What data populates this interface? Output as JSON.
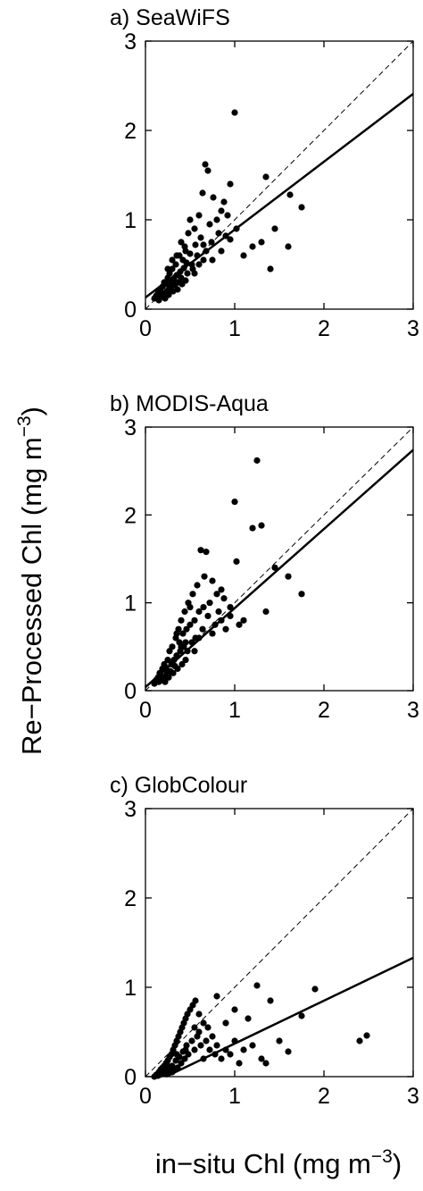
{
  "chart_data": [
    {
      "type": "scatter",
      "title": "a) SeaWiFS",
      "xlim": [
        0,
        3
      ],
      "ylim": [
        0,
        3
      ],
      "x_ticks": [
        "0",
        "1",
        "2",
        "3"
      ],
      "y_ticks": [
        "0",
        "1",
        "2",
        "3"
      ],
      "one_to_one_line": true,
      "fit_line": {
        "intercept": 0.13,
        "slope": 0.76
      },
      "points": [
        [
          0.1,
          0.12
        ],
        [
          0.12,
          0.15
        ],
        [
          0.14,
          0.18
        ],
        [
          0.15,
          0.1
        ],
        [
          0.16,
          0.22
        ],
        [
          0.17,
          0.2
        ],
        [
          0.18,
          0.14
        ],
        [
          0.19,
          0.25
        ],
        [
          0.2,
          0.17
        ],
        [
          0.21,
          0.3
        ],
        [
          0.22,
          0.12
        ],
        [
          0.23,
          0.28
        ],
        [
          0.24,
          0.2
        ],
        [
          0.25,
          0.35
        ],
        [
          0.26,
          0.16
        ],
        [
          0.27,
          0.4
        ],
        [
          0.28,
          0.24
        ],
        [
          0.29,
          0.3
        ],
        [
          0.3,
          0.45
        ],
        [
          0.31,
          0.2
        ],
        [
          0.32,
          0.33
        ],
        [
          0.33,
          0.27
        ],
        [
          0.34,
          0.5
        ],
        [
          0.35,
          0.38
        ],
        [
          0.36,
          0.22
        ],
        [
          0.37,
          0.3
        ],
        [
          0.38,
          0.6
        ],
        [
          0.39,
          0.42
        ],
        [
          0.4,
          0.35
        ],
        [
          0.41,
          0.28
        ],
        [
          0.42,
          0.55
        ],
        [
          0.43,
          0.46
        ],
        [
          0.44,
          0.7
        ],
        [
          0.45,
          0.32
        ],
        [
          0.46,
          0.52
        ],
        [
          0.47,
          0.4
        ],
        [
          0.48,
          0.85
        ],
        [
          0.5,
          0.62
        ],
        [
          0.52,
          0.5
        ],
        [
          0.53,
          0.45
        ],
        [
          0.55,
          0.9
        ],
        [
          0.56,
          0.72
        ],
        [
          0.58,
          0.6
        ],
        [
          0.6,
          1.05
        ],
        [
          0.62,
          0.8
        ],
        [
          0.64,
          1.3
        ],
        [
          0.65,
          0.55
        ],
        [
          0.67,
          1.62
        ],
        [
          0.68,
          0.65
        ],
        [
          0.7,
          1.55
        ],
        [
          0.72,
          0.95
        ],
        [
          0.74,
          0.75
        ],
        [
          0.76,
          1.25
        ],
        [
          0.8,
          1.0
        ],
        [
          0.82,
          0.85
        ],
        [
          0.85,
          1.1
        ],
        [
          0.88,
          1.2
        ],
        [
          0.9,
          0.82
        ],
        [
          0.92,
          1.05
        ],
        [
          0.95,
          0.78
        ],
        [
          1.0,
          2.2
        ],
        [
          1.02,
          0.9
        ],
        [
          1.1,
          0.6
        ],
        [
          1.2,
          0.7
        ],
        [
          1.3,
          0.75
        ],
        [
          1.35,
          1.48
        ],
        [
          1.4,
          0.45
        ],
        [
          1.45,
          0.9
        ],
        [
          1.6,
          0.7
        ],
        [
          1.62,
          1.28
        ],
        [
          1.75,
          1.14
        ],
        [
          0.35,
          0.6
        ],
        [
          0.45,
          0.65
        ],
        [
          0.55,
          0.4
        ],
        [
          0.6,
          0.5
        ],
        [
          0.65,
          0.72
        ],
        [
          0.75,
          0.55
        ],
        [
          0.85,
          0.65
        ],
        [
          0.95,
          1.4
        ],
        [
          0.4,
          0.75
        ],
        [
          0.5,
          1.0
        ],
        [
          0.3,
          0.55
        ],
        [
          0.25,
          0.45
        ]
      ]
    },
    {
      "type": "scatter",
      "title": "b) MODIS-Aqua",
      "xlim": [
        0,
        3
      ],
      "ylim": [
        0,
        3
      ],
      "x_ticks": [
        "0",
        "1",
        "2",
        "3"
      ],
      "y_ticks": [
        "0",
        "1",
        "2",
        "3"
      ],
      "one_to_one_line": true,
      "fit_line": {
        "intercept": 0.04,
        "slope": 0.9
      },
      "points": [
        [
          0.1,
          0.08
        ],
        [
          0.12,
          0.12
        ],
        [
          0.14,
          0.15
        ],
        [
          0.15,
          0.1
        ],
        [
          0.16,
          0.2
        ],
        [
          0.17,
          0.18
        ],
        [
          0.18,
          0.12
        ],
        [
          0.19,
          0.25
        ],
        [
          0.2,
          0.15
        ],
        [
          0.21,
          0.3
        ],
        [
          0.22,
          0.1
        ],
        [
          0.23,
          0.26
        ],
        [
          0.24,
          0.2
        ],
        [
          0.25,
          0.35
        ],
        [
          0.26,
          0.15
        ],
        [
          0.27,
          0.45
        ],
        [
          0.28,
          0.22
        ],
        [
          0.29,
          0.3
        ],
        [
          0.3,
          0.5
        ],
        [
          0.31,
          0.2
        ],
        [
          0.32,
          0.35
        ],
        [
          0.33,
          0.28
        ],
        [
          0.34,
          0.6
        ],
        [
          0.35,
          0.4
        ],
        [
          0.36,
          0.25
        ],
        [
          0.37,
          0.7
        ],
        [
          0.38,
          0.55
        ],
        [
          0.39,
          0.45
        ],
        [
          0.4,
          0.8
        ],
        [
          0.41,
          0.3
        ],
        [
          0.42,
          0.65
        ],
        [
          0.43,
          0.5
        ],
        [
          0.44,
          0.9
        ],
        [
          0.45,
          0.35
        ],
        [
          0.46,
          0.7
        ],
        [
          0.47,
          0.45
        ],
        [
          0.48,
          1.0
        ],
        [
          0.5,
          0.75
        ],
        [
          0.52,
          0.55
        ],
        [
          0.53,
          1.1
        ],
        [
          0.55,
          0.8
        ],
        [
          0.56,
          0.6
        ],
        [
          0.58,
          1.2
        ],
        [
          0.6,
          0.9
        ],
        [
          0.62,
          1.6
        ],
        [
          0.64,
          0.7
        ],
        [
          0.66,
          1.3
        ],
        [
          0.68,
          1.58
        ],
        [
          0.7,
          0.85
        ],
        [
          0.72,
          1.0
        ],
        [
          0.75,
          1.25
        ],
        [
          0.78,
          0.75
        ],
        [
          0.8,
          1.1
        ],
        [
          0.82,
          0.9
        ],
        [
          0.85,
          0.8
        ],
        [
          0.88,
          1.05
        ],
        [
          0.9,
          0.7
        ],
        [
          0.95,
          0.95
        ],
        [
          1.0,
          2.15
        ],
        [
          1.02,
          1.47
        ],
        [
          1.05,
          0.75
        ],
        [
          1.1,
          0.8
        ],
        [
          1.2,
          1.85
        ],
        [
          1.25,
          2.62
        ],
        [
          1.3,
          1.88
        ],
        [
          1.35,
          0.9
        ],
        [
          1.45,
          1.4
        ],
        [
          1.6,
          1.3
        ],
        [
          1.75,
          1.1
        ],
        [
          0.35,
          0.65
        ],
        [
          0.45,
          0.55
        ],
        [
          0.55,
          0.45
        ],
        [
          0.6,
          0.6
        ],
        [
          0.65,
          0.95
        ],
        [
          0.75,
          0.65
        ],
        [
          0.85,
          1.15
        ],
        [
          0.95,
          0.85
        ],
        [
          0.4,
          0.5
        ],
        [
          0.5,
          0.95
        ]
      ]
    },
    {
      "type": "scatter",
      "title": "c) GlobColour",
      "xlim": [
        0,
        3
      ],
      "ylim": [
        0,
        3
      ],
      "x_ticks": [
        "0",
        "1",
        "2",
        "3"
      ],
      "y_ticks": [
        "0",
        "1",
        "2",
        "3"
      ],
      "one_to_one_line": true,
      "fit_line": {
        "intercept": -0.11,
        "slope": 0.48
      },
      "points": [
        [
          0.1,
          0.0
        ],
        [
          0.12,
          0.02
        ],
        [
          0.14,
          0.01
        ],
        [
          0.15,
          0.05
        ],
        [
          0.16,
          0.02
        ],
        [
          0.17,
          0.08
        ],
        [
          0.18,
          0.04
        ],
        [
          0.19,
          0.1
        ],
        [
          0.2,
          0.06
        ],
        [
          0.21,
          0.12
        ],
        [
          0.22,
          0.03
        ],
        [
          0.23,
          0.15
        ],
        [
          0.24,
          0.07
        ],
        [
          0.25,
          0.18
        ],
        [
          0.26,
          0.1
        ],
        [
          0.27,
          0.22
        ],
        [
          0.28,
          0.05
        ],
        [
          0.29,
          0.25
        ],
        [
          0.3,
          0.12
        ],
        [
          0.31,
          0.3
        ],
        [
          0.32,
          0.08
        ],
        [
          0.33,
          0.35
        ],
        [
          0.34,
          0.18
        ],
        [
          0.35,
          0.4
        ],
        [
          0.36,
          0.1
        ],
        [
          0.37,
          0.45
        ],
        [
          0.38,
          0.22
        ],
        [
          0.39,
          0.5
        ],
        [
          0.4,
          0.15
        ],
        [
          0.41,
          0.55
        ],
        [
          0.42,
          0.28
        ],
        [
          0.43,
          0.6
        ],
        [
          0.44,
          0.2
        ],
        [
          0.45,
          0.65
        ],
        [
          0.46,
          0.35
        ],
        [
          0.47,
          0.7
        ],
        [
          0.48,
          0.25
        ],
        [
          0.5,
          0.75
        ],
        [
          0.52,
          0.4
        ],
        [
          0.53,
          0.8
        ],
        [
          0.55,
          0.3
        ],
        [
          0.56,
          0.85
        ],
        [
          0.58,
          0.45
        ],
        [
          0.6,
          0.5
        ],
        [
          0.62,
          0.35
        ],
        [
          0.65,
          0.6
        ],
        [
          0.68,
          0.4
        ],
        [
          0.7,
          0.55
        ],
        [
          0.72,
          0.3
        ],
        [
          0.75,
          0.45
        ],
        [
          0.78,
          0.25
        ],
        [
          0.8,
          0.35
        ],
        [
          0.85,
          0.2
        ],
        [
          0.9,
          0.3
        ],
        [
          0.95,
          0.25
        ],
        [
          1.0,
          0.4
        ],
        [
          1.05,
          0.15
        ],
        [
          1.1,
          0.3
        ],
        [
          1.15,
          0.65
        ],
        [
          1.2,
          0.35
        ],
        [
          1.25,
          1.02
        ],
        [
          1.3,
          0.2
        ],
        [
          1.35,
          0.15
        ],
        [
          1.4,
          0.85
        ],
        [
          1.5,
          0.4
        ],
        [
          1.6,
          0.28
        ],
        [
          1.75,
          0.68
        ],
        [
          1.9,
          0.98
        ],
        [
          2.4,
          0.4
        ],
        [
          2.48,
          0.46
        ],
        [
          0.8,
          0.9
        ],
        [
          0.6,
          0.7
        ],
        [
          0.9,
          0.6
        ],
        [
          1.0,
          0.75
        ],
        [
          0.45,
          0.3
        ],
        [
          0.55,
          0.55
        ],
        [
          0.35,
          0.25
        ],
        [
          0.25,
          0.12
        ],
        [
          0.65,
          0.2
        ],
        [
          0.3,
          0.05
        ]
      ]
    }
  ],
  "ylabel": "Re−Processed Chl (mg m",
  "xlabel": "in−situ Chl (mg m",
  "unit_exponent": "−3"
}
